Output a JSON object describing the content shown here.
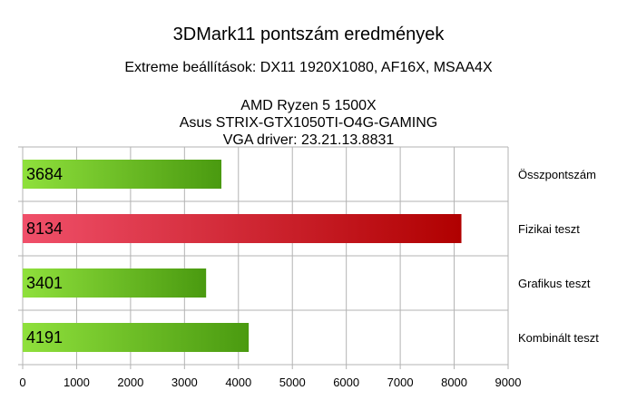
{
  "chart_data": {
    "type": "bar",
    "orientation": "horizontal",
    "title": "3DMark11 pontszám eredmények",
    "subtitle": "Extreme beállítások: DX11 1920X1080, AF16X, MSAA4X",
    "info_lines": [
      "AMD Ryzen 5 1500X",
      "Asus STRIX-GTX1050TI-O4G-GAMING",
      "VGA driver: 23.21.13.8831"
    ],
    "categories": [
      "Összpontszám",
      "Fizikai teszt",
      "Grafikus teszt",
      "Kombinált teszt"
    ],
    "values": [
      3684,
      8134,
      3401,
      4191
    ],
    "bar_colors": [
      "green",
      "red",
      "green",
      "green"
    ],
    "xlim": [
      0,
      9000
    ],
    "xticks": [
      0,
      1000,
      2000,
      3000,
      4000,
      5000,
      6000,
      7000,
      8000,
      9000
    ],
    "grid": true,
    "category_label_position": "right",
    "colors": {
      "green_light": "#8fe03c",
      "green_dark": "#4a9a10",
      "red_light": "#f0506a",
      "red_dark": "#b00000",
      "grid": "#b3b3b3"
    }
  }
}
